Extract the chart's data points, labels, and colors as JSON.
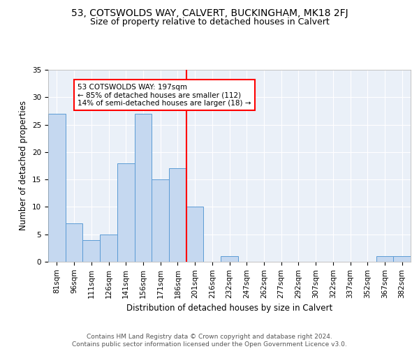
{
  "title1": "53, COTSWOLDS WAY, CALVERT, BUCKINGHAM, MK18 2FJ",
  "title2": "Size of property relative to detached houses in Calvert",
  "xlabel": "Distribution of detached houses by size in Calvert",
  "ylabel": "Number of detached properties",
  "categories": [
    "81sqm",
    "96sqm",
    "111sqm",
    "126sqm",
    "141sqm",
    "156sqm",
    "171sqm",
    "186sqm",
    "201sqm",
    "216sqm",
    "232sqm",
    "247sqm",
    "262sqm",
    "277sqm",
    "292sqm",
    "307sqm",
    "322sqm",
    "337sqm",
    "352sqm",
    "367sqm",
    "382sqm"
  ],
  "values": [
    27,
    7,
    4,
    5,
    18,
    27,
    15,
    17,
    10,
    0,
    1,
    0,
    0,
    0,
    0,
    0,
    0,
    0,
    0,
    1,
    1
  ],
  "bar_color": "#c5d8f0",
  "bar_edge_color": "#5b9bd5",
  "vline_index": 8,
  "annotation_text": "53 COTSWOLDS WAY: 197sqm\n← 85% of detached houses are smaller (112)\n14% of semi-detached houses are larger (18) →",
  "ylim": [
    0,
    35
  ],
  "yticks": [
    0,
    5,
    10,
    15,
    20,
    25,
    30,
    35
  ],
  "background_color": "#eaf0f8",
  "footer_text": "Contains HM Land Registry data © Crown copyright and database right 2024.\nContains public sector information licensed under the Open Government Licence v3.0.",
  "title1_fontsize": 10,
  "title2_fontsize": 9,
  "xlabel_fontsize": 8.5,
  "ylabel_fontsize": 8.5,
  "tick_fontsize": 7.5,
  "footer_fontsize": 6.5,
  "annotation_fontsize": 7.5
}
